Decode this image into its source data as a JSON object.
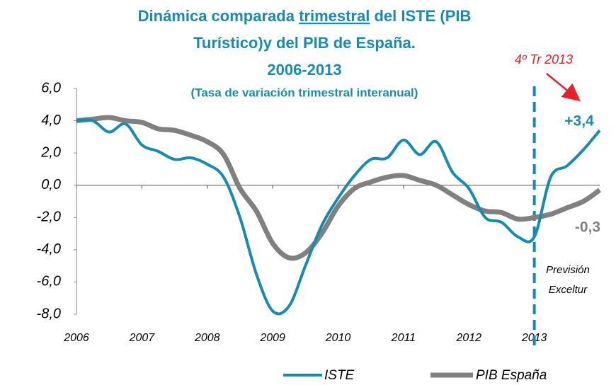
{
  "chart_data": {
    "type": "line",
    "title": [
      "Dinámica comparada ",
      "trimestral",
      " del ISTE (PIB",
      "Turístico)y del PIB de España.",
      "2006-2013"
    ],
    "subtitle": "(Tasa de variación trimestral interanual)",
    "x": [
      2006,
      2006.25,
      2006.5,
      2006.75,
      2007,
      2007.25,
      2007.5,
      2007.75,
      2008,
      2008.25,
      2008.5,
      2008.75,
      2009,
      2009.25,
      2009.5,
      2009.75,
      2010,
      2010.25,
      2010.5,
      2010.75,
      2011,
      2011.25,
      2011.5,
      2011.75,
      2012,
      2012.25,
      2012.5,
      2012.75,
      2013,
      2013.25,
      2013.5,
      2013.75,
      2014
    ],
    "series": [
      {
        "name": "ISTE",
        "color": "#168bb0",
        "values": [
          4.0,
          4.0,
          3.3,
          3.8,
          2.5,
          2.1,
          1.6,
          1.7,
          1.3,
          0.5,
          -2.0,
          -5.5,
          -7.8,
          -7.5,
          -5.0,
          -2.5,
          -0.8,
          0.6,
          1.6,
          1.7,
          2.8,
          1.9,
          2.7,
          0.8,
          -0.2,
          -2.0,
          -2.3,
          -3.2,
          -3.2,
          0.5,
          1.2,
          2.2,
          3.4
        ]
      },
      {
        "name": "PIB España",
        "color": "#808080",
        "values": [
          4.0,
          4.1,
          4.2,
          4.0,
          3.9,
          3.5,
          3.4,
          3.1,
          2.7,
          1.9,
          -0.2,
          -1.6,
          -3.6,
          -4.5,
          -4.2,
          -3.0,
          -1.3,
          -0.2,
          0.2,
          0.5,
          0.6,
          0.3,
          0.0,
          -0.6,
          -1.2,
          -1.6,
          -1.7,
          -2.1,
          -2.0,
          -1.8,
          -1.4,
          -1.0,
          -0.3
        ]
      }
    ],
    "xlim": [
      2006,
      2014
    ],
    "xticks": [
      2006,
      2007,
      2008,
      2009,
      2010,
      2011,
      2012,
      2013
    ],
    "ylim": [
      -8,
      6
    ],
    "yticks": [
      {
        "value": -8,
        "label": "-8,0"
      },
      {
        "value": -6,
        "label": "-6,0"
      },
      {
        "value": -4,
        "label": "-4,0"
      },
      {
        "value": -2,
        "label": "-2,0"
      },
      {
        "value": 0,
        "label": "0,0"
      },
      {
        "value": 2,
        "label": "2,0"
      },
      {
        "value": 4,
        "label": "4,0"
      },
      {
        "value": 6,
        "label": "6,0"
      }
    ],
    "annotations": {
      "iste_last": "+3,4",
      "pib_last": "-0,3",
      "period": "4º Tr 2013",
      "forecast": [
        "Previsión",
        "Exceltur"
      ]
    },
    "forecast_line": 2013,
    "grid": false
  }
}
